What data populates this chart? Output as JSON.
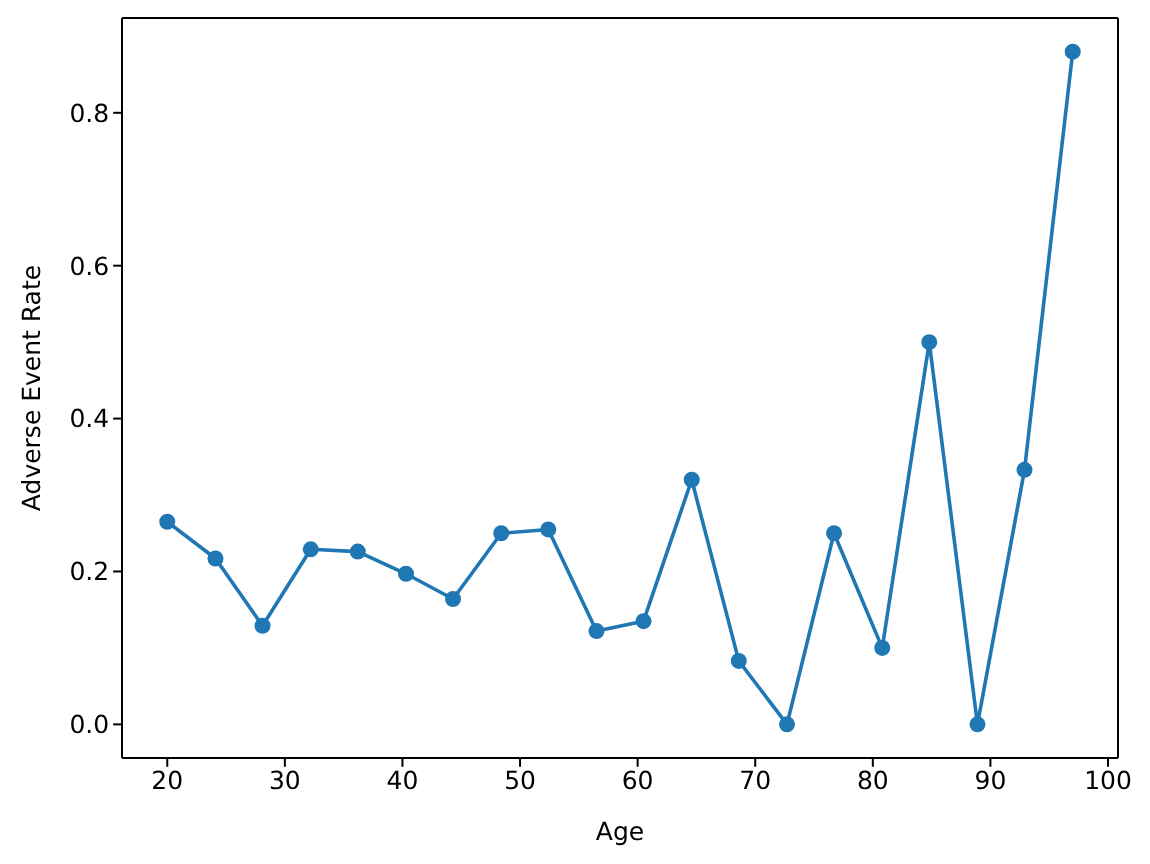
{
  "chart_data": {
    "type": "line",
    "xlabel": "Age",
    "ylabel": "Adverse Event Rate",
    "x": [
      20,
      24.1,
      28.1,
      32.2,
      36.2,
      40.3,
      44.3,
      48.4,
      52.4,
      56.5,
      60.5,
      64.6,
      68.6,
      72.7,
      76.7,
      80.8,
      84.8,
      88.9,
      92.9,
      97
    ],
    "values": [
      0.265,
      0.217,
      0.129,
      0.229,
      0.226,
      0.197,
      0.164,
      0.25,
      0.255,
      0.122,
      0.135,
      0.32,
      0.083,
      0,
      0.25,
      0.1,
      0.5,
      0,
      0.333,
      0.88
    ],
    "color": "#1f77b4",
    "marker": "circle",
    "line_style": "solid",
    "xlim": [
      16.15,
      100.85
    ],
    "ylim": [
      -0.044,
      0.924
    ],
    "xticks": [
      20,
      30,
      40,
      50,
      60,
      70,
      80,
      90,
      100
    ],
    "yticks": [
      {
        "value": 0,
        "label": "0.0"
      },
      0.2,
      0.4,
      0.6,
      0.8
    ]
  }
}
